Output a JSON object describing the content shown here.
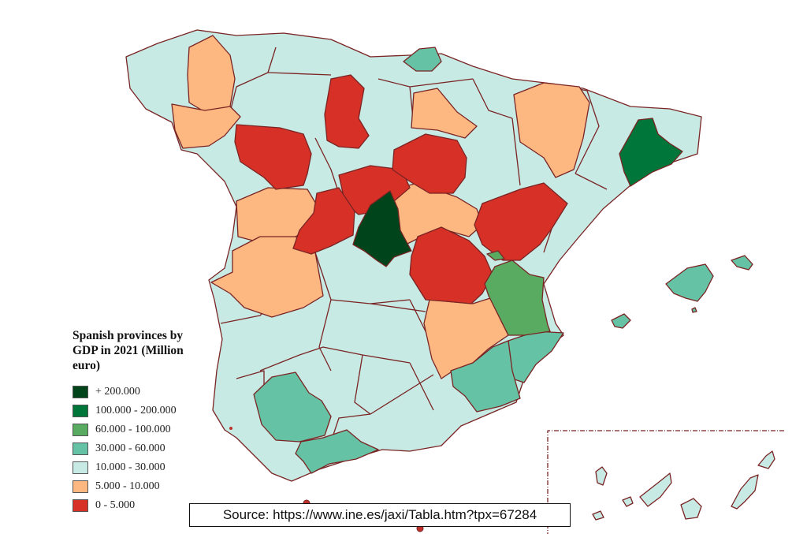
{
  "legend": {
    "title": "Spanish provinces by GDP in 2021 (Million euro)",
    "items": [
      {
        "label": "+ 200.000",
        "color": "#00441b"
      },
      {
        "label": "100.000 - 200.000",
        "color": "#00763a"
      },
      {
        "label": "60.000 - 100.000",
        "color": "#5aab62"
      },
      {
        "label": "30.000 - 60.000",
        "color": "#66c2a4"
      },
      {
        "label": "10.000 - 30.000",
        "color": "#c7eae4"
      },
      {
        "label": "5.000 - 10.000",
        "color": "#fdb882"
      },
      {
        "label": "0 - 5.000",
        "color": "#d73027"
      }
    ]
  },
  "source": "Source: https://www.ine.es/jaxi/Tabla.htm?tpx=67284",
  "colors": {
    "border": "#7a2424",
    "background": "#ffffff"
  }
}
